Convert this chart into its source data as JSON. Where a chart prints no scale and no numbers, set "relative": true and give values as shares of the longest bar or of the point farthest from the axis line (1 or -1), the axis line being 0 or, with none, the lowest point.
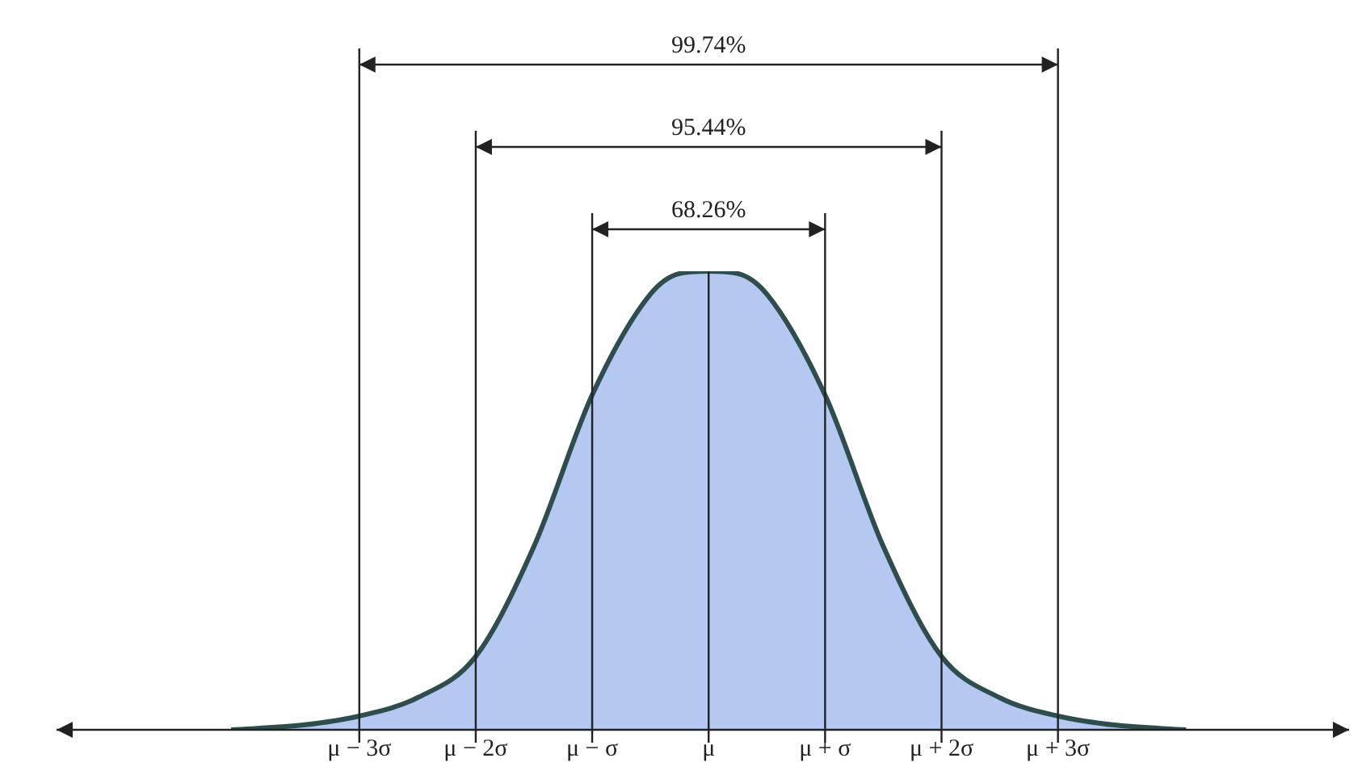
{
  "chart_data": {
    "type": "area",
    "relative": true,
    "x": [
      -4.1,
      -3.5,
      -3,
      -2.5,
      -2,
      -1.5,
      -1,
      -0.5,
      -0.25,
      0,
      0.25,
      0.5,
      1,
      1.5,
      2,
      2.5,
      3,
      3.5,
      4.1
    ],
    "series": [
      {
        "color": "#b4c8f2",
        "values": [
          0,
          0.01,
          0.03,
          0.07,
          0.16,
          0.4,
          0.73,
          0.95,
          0.995,
          1,
          0.995,
          0.95,
          0.73,
          0.4,
          0.16,
          0.07,
          0.03,
          0.01,
          0
        ]
      }
    ],
    "xlim": [
      -5.6,
      5.5
    ],
    "xticks": [
      {
        "value": -3,
        "label": "μ − 3σ"
      },
      {
        "value": -2,
        "label": "μ − 2σ"
      },
      {
        "value": -1,
        "label": "μ − σ"
      },
      {
        "value": 0,
        "label": "μ"
      },
      {
        "value": 1,
        "label": "μ + σ"
      },
      {
        "value": 2,
        "label": "μ + 2σ"
      },
      {
        "value": 3,
        "label": "μ + 3σ"
      }
    ],
    "ref_lines": [
      {
        "axis": "x",
        "value": -3
      },
      {
        "axis": "x",
        "value": -2
      },
      {
        "axis": "x",
        "value": -1
      },
      {
        "axis": "x",
        "value": 0
      },
      {
        "axis": "x",
        "value": 1
      },
      {
        "axis": "x",
        "value": 2
      },
      {
        "axis": "x",
        "value": 3
      }
    ],
    "annotations": [
      "99.74%",
      "95.44%",
      "68.26%"
    ],
    "grid": false,
    "legend": false,
    "marker": "none"
  }
}
